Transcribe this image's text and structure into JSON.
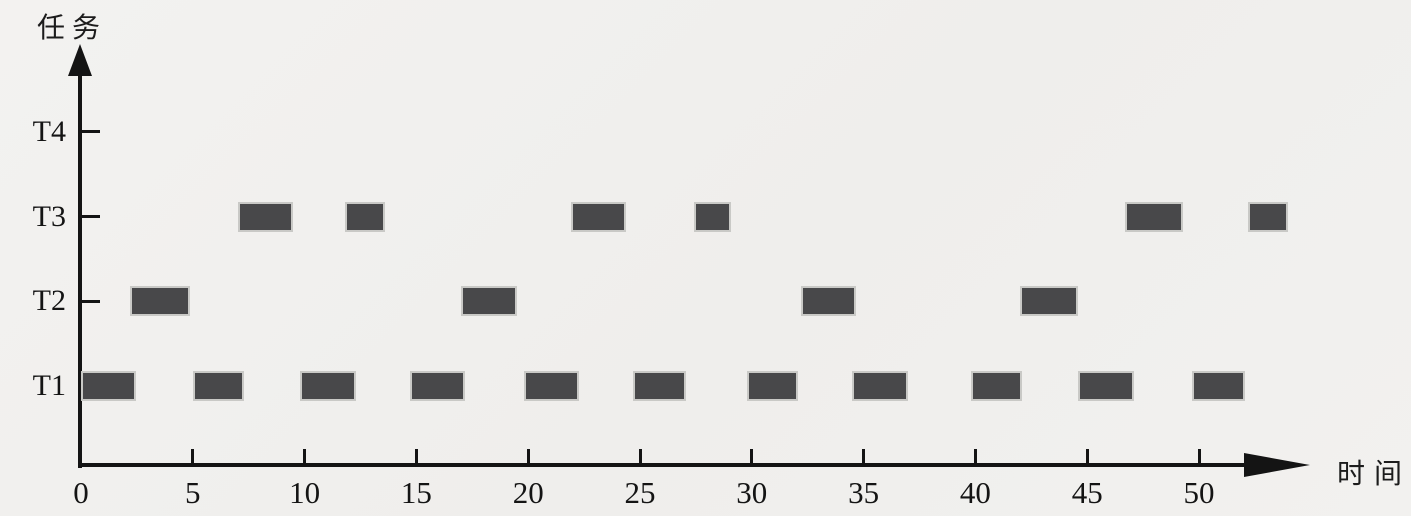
{
  "figure": {
    "background_color": "#f1f0ee",
    "bar_color": "#48484a",
    "bar_border_color": "#c9c9c6",
    "axis_color": "#141414",
    "text_color": "#141414"
  },
  "chart_data": {
    "type": "gantt",
    "title": "",
    "ylabel": "任务",
    "xlabel": "时间",
    "categories": [
      "T1",
      "T2",
      "T3",
      "T4"
    ],
    "x_ticks": [
      0,
      5,
      10,
      15,
      20,
      25,
      30,
      35,
      40,
      45,
      50
    ],
    "xlim": [
      0,
      55
    ],
    "grid": false,
    "legend": "none",
    "series": [
      {
        "name": "T1",
        "intervals": [
          [
            0,
            2.3
          ],
          [
            5,
            7.1
          ],
          [
            9.8,
            12.1
          ],
          [
            14.7,
            17
          ],
          [
            19.8,
            22.1
          ],
          [
            24.7,
            26.9
          ],
          [
            29.8,
            31.9
          ],
          [
            34.5,
            36.8
          ],
          [
            39.8,
            41.9
          ],
          [
            44.6,
            46.9
          ],
          [
            49.7,
            51.9
          ]
        ]
      },
      {
        "name": "T2",
        "intervals": [
          [
            2.2,
            4.7
          ],
          [
            17,
            19.3
          ],
          [
            32.2,
            34.5
          ],
          [
            42,
            44.4
          ]
        ]
      },
      {
        "name": "T3",
        "intervals": [
          [
            7,
            9.3
          ],
          [
            11.8,
            13.4
          ],
          [
            21.9,
            24.2
          ],
          [
            27.4,
            28.9
          ],
          [
            46.7,
            49.1
          ],
          [
            52.2,
            53.8
          ]
        ]
      },
      {
        "name": "T4",
        "intervals": []
      }
    ]
  }
}
